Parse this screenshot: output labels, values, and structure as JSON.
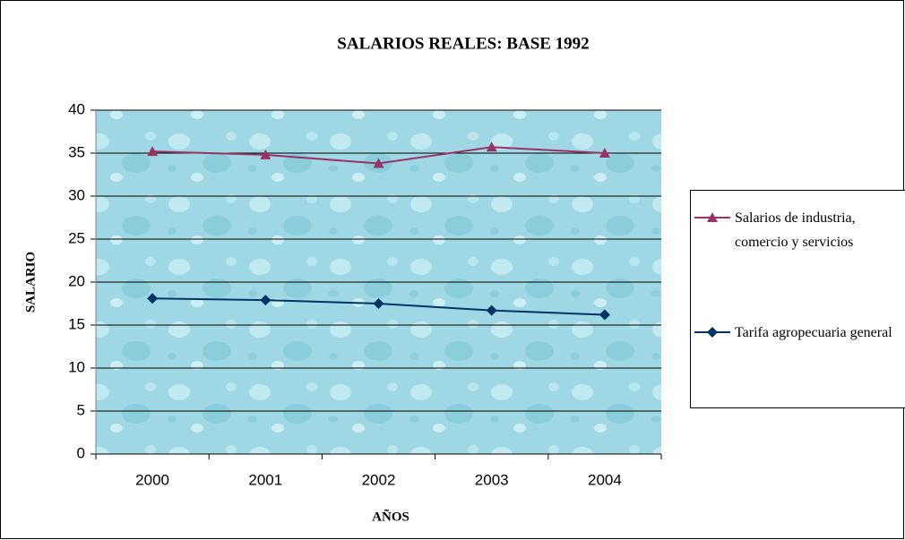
{
  "chart_data": {
    "type": "line",
    "title": "SALARIOS REALES: BASE 1992",
    "x_label": "AÑOS",
    "y_label": "SALARIO",
    "categories": [
      "2000",
      "2001",
      "2002",
      "2003",
      "2004"
    ],
    "series": [
      {
        "name": "Salarios de industria, comercio y servicios",
        "color": "#993366",
        "marker": "triangle",
        "values": [
          35.2,
          34.8,
          33.8,
          35.7,
          35.0
        ]
      },
      {
        "name": "Tarifa agropecuaria general",
        "color": "#003366",
        "marker": "diamond",
        "values": [
          18.1,
          17.9,
          17.5,
          16.7,
          16.2
        ]
      }
    ],
    "ylim": [
      0,
      40
    ],
    "yticks": [
      0,
      5,
      10,
      15,
      20,
      25,
      30,
      35,
      40
    ],
    "grid": true,
    "legend": "right"
  }
}
